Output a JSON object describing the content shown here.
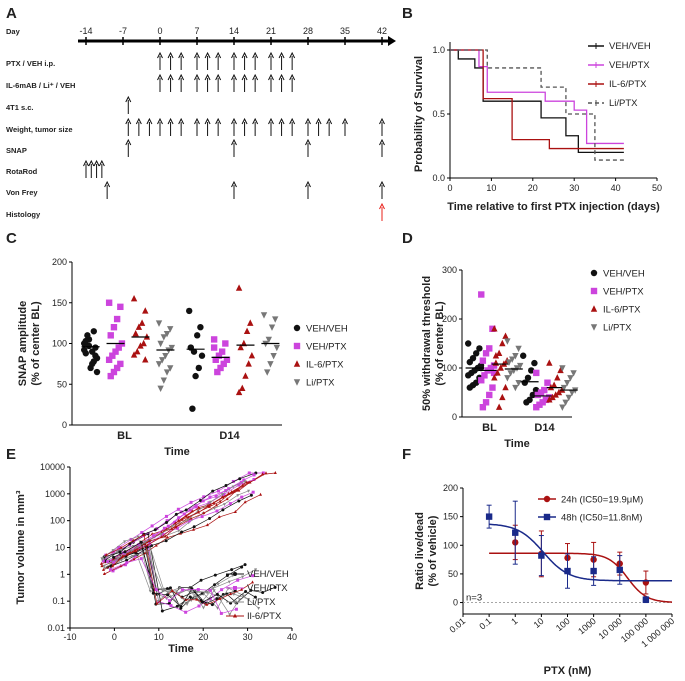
{
  "panel_labels": [
    "A",
    "B",
    "C",
    "D",
    "E",
    "F"
  ],
  "chart_data": [
    {
      "panel": "A",
      "type": "timeline",
      "day_label": "Day",
      "day_ticks": [
        -14,
        -7,
        0,
        7,
        14,
        21,
        28,
        35,
        42
      ],
      "rows": [
        {
          "label": "PTX / VEH i.p.",
          "days": [
            0,
            2,
            4,
            7,
            9,
            11,
            14,
            16,
            18,
            21,
            23,
            25
          ]
        },
        {
          "label": "IL-6mAB / Li⁺ / VEH",
          "days": [
            0,
            2,
            4,
            7,
            9,
            11,
            14,
            16,
            18,
            21,
            23,
            25
          ]
        },
        {
          "label": "4T1 s.c.",
          "days": [
            -6
          ]
        },
        {
          "label": "Weight, tumor size",
          "days": [
            -6,
            -4,
            -2,
            0,
            2,
            4,
            7,
            9,
            11,
            14,
            16,
            18,
            21,
            23,
            25,
            28,
            30,
            32,
            35,
            42
          ]
        },
        {
          "label": "SNAP",
          "days": [
            -6,
            14,
            28,
            42
          ]
        },
        {
          "label": "RotaRod",
          "days": [
            -14,
            -13,
            -12,
            -11
          ]
        },
        {
          "label": "Von Frey",
          "days": [
            -10,
            14,
            28,
            42
          ]
        },
        {
          "label": "Histology",
          "days": [
            42
          ]
        }
      ]
    },
    {
      "panel": "B",
      "type": "line",
      "xlabel": "Time relative to first PTX injection (days)",
      "ylabel": "Probability of Survival",
      "xlim": [
        0,
        50
      ],
      "ylim": [
        0,
        1
      ],
      "xticks": [
        0,
        10,
        20,
        30,
        40,
        50
      ],
      "yticks": [
        "0.0",
        "0.5",
        "1.0"
      ],
      "series": [
        {
          "name": "VEH/VEH",
          "color": "#111111",
          "dash": "",
          "points": [
            [
              0,
              1
            ],
            [
              2,
              1
            ],
            [
              2,
              0.93
            ],
            [
              6,
              0.93
            ],
            [
              6,
              0.86
            ],
            [
              8,
              0.86
            ],
            [
              8,
              0.6
            ],
            [
              22,
              0.6
            ],
            [
              22,
              0.47
            ],
            [
              28,
              0.47
            ],
            [
              28,
              0.33
            ],
            [
              31,
              0.33
            ],
            [
              31,
              0.2
            ],
            [
              42,
              0.2
            ]
          ]
        },
        {
          "name": "VEH/PTX",
          "color": "#cc44dd",
          "dash": "",
          "points": [
            [
              0,
              1
            ],
            [
              7,
              1
            ],
            [
              7,
              0.87
            ],
            [
              9,
              0.87
            ],
            [
              9,
              0.67
            ],
            [
              23,
              0.67
            ],
            [
              23,
              0.6
            ],
            [
              30,
              0.6
            ],
            [
              30,
              0.53
            ],
            [
              33,
              0.53
            ],
            [
              33,
              0.27
            ],
            [
              42,
              0.27
            ]
          ]
        },
        {
          "name": "IL-6/PTX",
          "color": "#aa1111",
          "dash": "",
          "points": [
            [
              0,
              1
            ],
            [
              8,
              1
            ],
            [
              8,
              0.62
            ],
            [
              15,
              0.62
            ],
            [
              15,
              0.3
            ],
            [
              24,
              0.3
            ],
            [
              24,
              0.23
            ],
            [
              42,
              0.23
            ]
          ]
        },
        {
          "name": "Li/PTX",
          "color": "#555555",
          "dash": "4,3",
          "points": [
            [
              0,
              1
            ],
            [
              9,
              1
            ],
            [
              9,
              0.86
            ],
            [
              22,
              0.86
            ],
            [
              22,
              0.71
            ],
            [
              28,
              0.71
            ],
            [
              28,
              0.5
            ],
            [
              35,
              0.5
            ],
            [
              35,
              0.14
            ],
            [
              42,
              0.14
            ]
          ]
        }
      ]
    },
    {
      "panel": "C",
      "type": "scatter",
      "xlabel": "Time",
      "ylabel": "SNAP amplitude (% of center BL)",
      "ylim": [
        0,
        200
      ],
      "yticks": [
        0,
        50,
        100,
        150,
        200
      ],
      "categories": [
        "BL",
        "D14"
      ],
      "series": [
        {
          "name": "VEH/VEH",
          "color": "#111111",
          "marker": "circle",
          "BL": [
            100,
            95,
            90,
            105,
            88,
            82,
            78,
            70,
            110,
            92,
            85,
            75,
            97,
            103,
            65,
            115
          ],
          "D14": [
            140,
            120,
            110,
            90,
            95,
            85,
            70,
            60,
            20
          ],
          "BL_mean": 96,
          "D14_mean": 93
        },
        {
          "name": "VEH/PTX",
          "color": "#cc44dd",
          "marker": "square",
          "BL": [
            150,
            145,
            130,
            120,
            110,
            100,
            95,
            90,
            85,
            80,
            75,
            70,
            65,
            60
          ],
          "D14": [
            105,
            100,
            90,
            85,
            80,
            80,
            75,
            70,
            65,
            95
          ],
          "BL_mean": 100,
          "D14_mean": 83
        },
        {
          "name": "IL-6/PTX",
          "color": "#aa1111",
          "marker": "triangle-up",
          "BL": [
            155,
            140,
            125,
            120,
            112,
            108,
            100,
            97,
            90,
            86,
            80
          ],
          "D14": [
            168,
            125,
            115,
            100,
            95,
            85,
            75,
            60,
            45,
            40
          ],
          "BL_mean": 108,
          "D14_mean": 98
        },
        {
          "name": "Li/PTX",
          "color": "#777777",
          "marker": "triangle-down",
          "BL": [
            125,
            118,
            112,
            108,
            100,
            95,
            92,
            85,
            80,
            75,
            70,
            65,
            55,
            45
          ],
          "D14": [
            135,
            130,
            120,
            105,
            100,
            95,
            85,
            75,
            65
          ],
          "BL_mean": 92,
          "D14_mean": 100
        }
      ]
    },
    {
      "panel": "D",
      "type": "scatter",
      "xlabel": "Time",
      "ylabel": "50% withdrawal threshold (% of center BL)",
      "ylim": [
        0,
        300
      ],
      "yticks": [
        0,
        100,
        200,
        300
      ],
      "categories": [
        "BL",
        "D14"
      ],
      "series": [
        {
          "name": "VEH/VEH",
          "color": "#111111",
          "marker": "circle",
          "BL": [
            150,
            140,
            130,
            120,
            112,
            105,
            100,
            95,
            90,
            85,
            80,
            70,
            65,
            60,
            100
          ],
          "D14": [
            125,
            110,
            95,
            80,
            70,
            55,
            45,
            35,
            30
          ],
          "BL_mean": 100,
          "D14_mean": 72
        },
        {
          "name": "VEH/PTX",
          "color": "#cc44dd",
          "marker": "square",
          "BL": [
            250,
            180,
            140,
            130,
            115,
            105,
            100,
            95,
            85,
            75,
            60,
            45,
            30,
            20,
            90
          ],
          "D14": [
            90,
            70,
            55,
            50,
            45,
            40,
            35,
            30,
            25,
            20
          ],
          "BL_mean": 95,
          "D14_mean": 43
        },
        {
          "name": "IL-6/PTX",
          "color": "#aa1111",
          "marker": "triangle-up",
          "BL": [
            180,
            165,
            150,
            130,
            125,
            115,
            108,
            100,
            90,
            80,
            60,
            40,
            20,
            110
          ],
          "D14": [
            110,
            95,
            80,
            65,
            60,
            55,
            50,
            45,
            40,
            35
          ],
          "BL_mean": 108,
          "D14_mean": 60
        },
        {
          "name": "Li/PTX",
          "color": "#777777",
          "marker": "triangle-down",
          "BL": [
            155,
            140,
            125,
            118,
            112,
            105,
            100,
            95,
            90,
            80,
            70,
            60
          ],
          "D14": [
            100,
            90,
            80,
            70,
            60,
            55,
            50,
            40,
            30,
            20
          ],
          "BL_mean": 98,
          "D14_mean": 55
        }
      ]
    },
    {
      "panel": "E",
      "type": "line",
      "xlabel": "Time",
      "ylabel": "Tumor volume in mm³",
      "yscale": "log",
      "xlim": [
        -10,
        40
      ],
      "ylim": [
        0.01,
        10000
      ],
      "xticks": [
        -10,
        0,
        10,
        20,
        30,
        40
      ],
      "yticks": [
        "0.01",
        "0.1",
        "1",
        "10",
        "100",
        "1000",
        "10000"
      ],
      "legend": [
        "VEH/VEH",
        "VEH/PTX",
        "Li/PTX",
        "Il-6/PTX"
      ]
    },
    {
      "panel": "F",
      "type": "scatter",
      "xlabel": "PTX (nM)",
      "ylabel": "Ratio live/dead (% of vehicle)",
      "xscale": "log",
      "ylim": [
        -20,
        200
      ],
      "yticks": [
        0,
        50,
        100,
        150,
        200
      ],
      "xticks": [
        "0.01",
        "0.1",
        "1",
        "10",
        "100",
        "1000",
        "10 000",
        "100 000",
        "1 000 000"
      ],
      "annotation": "n=3",
      "series": [
        {
          "name": "24h (IC50=19.9μM)",
          "color": "#aa1111",
          "marker": "circle",
          "x": [
            1,
            10,
            100,
            1000,
            10000,
            100000
          ],
          "y": [
            105,
            85,
            78,
            75,
            68,
            35
          ],
          "err": [
            30,
            40,
            25,
            30,
            20,
            20
          ],
          "fit": {
            "top": 86,
            "bottom": 0,
            "ic50": 19900,
            "hill": 1.2
          }
        },
        {
          "name": "48h (IC50=11.8nM)",
          "color": "#1a2a8a",
          "marker": "square",
          "x": [
            0.1,
            1,
            10,
            100,
            1000,
            10000,
            100000
          ],
          "y": [
            150,
            122,
            82,
            55,
            55,
            57,
            5
          ],
          "err": [
            20,
            55,
            35,
            30,
            25,
            25,
            5
          ],
          "fit": {
            "top": 138,
            "bottom": 38,
            "ic50": 11.8,
            "hill": 0.9
          }
        }
      ]
    }
  ]
}
